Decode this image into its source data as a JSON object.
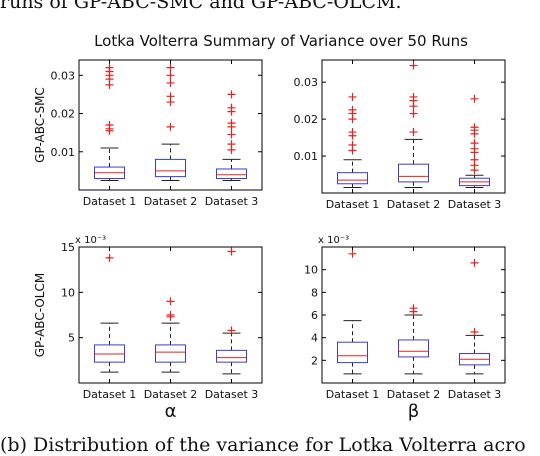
{
  "caption_top": "runs of GP-ABC-SMC and GP-ABC-OLCM.",
  "caption_bottom": "(b) Distribution of the variance for Lotka Volterra acro",
  "figure_title": "Lotka Volterra Summary of Variance over 50 Runs",
  "row_labels": [
    "GP-ABC-SMC",
    "GP-ABC-OLCM"
  ],
  "col_labels": [
    "α",
    "β"
  ],
  "colors": {
    "box": "#3b3bd6",
    "median": "#e52222",
    "outlier": "#e52222",
    "whisker": "#222222"
  },
  "chart_data": [
    {
      "type": "box",
      "panel": "GP-ABC-SMC / α",
      "categories": [
        "Dataset 1",
        "Dataset 2",
        "Dataset 3"
      ],
      "ylabel": "GP-ABC-SMC",
      "xlabel": "",
      "ylim": [
        0,
        0.034
      ],
      "yticks": [
        0.01,
        0.02,
        0.03
      ],
      "ytick_labels": [
        "0.01",
        "0.02",
        "0.03"
      ],
      "exponent_label": "",
      "series": [
        {
          "name": "Dataset 1",
          "min": 0.0025,
          "q1": 0.003,
          "median": 0.0045,
          "q3": 0.006,
          "max": 0.011,
          "outliers": [
            0.0155,
            0.016,
            0.017,
            0.0275,
            0.029,
            0.03,
            0.031,
            0.032
          ]
        },
        {
          "name": "Dataset 2",
          "min": 0.0025,
          "q1": 0.0035,
          "median": 0.005,
          "q3": 0.008,
          "max": 0.012,
          "outliers": [
            0.0165,
            0.023,
            0.0245,
            0.028,
            0.03,
            0.032
          ]
        },
        {
          "name": "Dataset 3",
          "min": 0.0025,
          "q1": 0.003,
          "median": 0.004,
          "q3": 0.0055,
          "max": 0.008,
          "outliers": [
            0.0105,
            0.012,
            0.0145,
            0.0165,
            0.0175,
            0.0205,
            0.0215,
            0.025
          ]
        }
      ]
    },
    {
      "type": "box",
      "panel": "GP-ABC-SMC / β",
      "categories": [
        "Dataset 1",
        "Dataset 2",
        "Dataset 3"
      ],
      "ylabel": "",
      "xlabel": "",
      "ylim": [
        0,
        0.036
      ],
      "yticks": [
        0.01,
        0.02,
        0.03
      ],
      "ytick_labels": [
        "0.01",
        "0.02",
        "0.03"
      ],
      "exponent_label": "",
      "series": [
        {
          "name": "Dataset 1",
          "min": 0.0015,
          "q1": 0.0025,
          "median": 0.0035,
          "q3": 0.0055,
          "max": 0.009,
          "outliers": [
            0.0115,
            0.013,
            0.0155,
            0.0165,
            0.02,
            0.0215,
            0.0225,
            0.026
          ]
        },
        {
          "name": "Dataset 2",
          "min": 0.0015,
          "q1": 0.003,
          "median": 0.0045,
          "q3": 0.0078,
          "max": 0.0145,
          "outliers": [
            0.0165,
            0.0215,
            0.0235,
            0.025,
            0.026,
            0.0345
          ]
        },
        {
          "name": "Dataset 3",
          "min": 0.0015,
          "q1": 0.002,
          "median": 0.003,
          "q3": 0.004,
          "max": 0.0048,
          "outliers": [
            0.0062,
            0.0075,
            0.009,
            0.011,
            0.012,
            0.0135,
            0.016,
            0.017,
            0.0178,
            0.0255
          ]
        }
      ]
    },
    {
      "type": "box",
      "panel": "GP-ABC-OLCM / α",
      "categories": [
        "Dataset 1",
        "Dataset 2",
        "Dataset 3"
      ],
      "ylabel": "GP-ABC-OLCM",
      "xlabel": "α",
      "ylim": [
        0,
        15
      ],
      "yticks": [
        5,
        10,
        15
      ],
      "ytick_labels": [
        "5",
        "10",
        "15"
      ],
      "exponent_label": "x 10⁻³",
      "series": [
        {
          "name": "Dataset 1",
          "min": 1.2,
          "q1": 2.3,
          "median": 3.2,
          "q3": 4.2,
          "max": 6.6,
          "outliers": [
            13.8
          ]
        },
        {
          "name": "Dataset 2",
          "min": 1.2,
          "q1": 2.3,
          "median": 3.4,
          "q3": 4.2,
          "max": 6.6,
          "outliers": [
            7.3,
            7.5,
            9.0
          ]
        },
        {
          "name": "Dataset 3",
          "min": 1.0,
          "q1": 2.3,
          "median": 2.8,
          "q3": 3.6,
          "max": 5.5,
          "outliers": [
            5.8,
            14.5
          ]
        }
      ]
    },
    {
      "type": "box",
      "panel": "GP-ABC-OLCM / β",
      "categories": [
        "Dataset 1",
        "Dataset 2",
        "Dataset 3"
      ],
      "ylabel": "",
      "xlabel": "β",
      "ylim": [
        0,
        12
      ],
      "yticks": [
        2,
        4,
        6,
        8,
        10
      ],
      "ytick_labels": [
        "2",
        "4",
        "6",
        "8",
        "10"
      ],
      "exponent_label": "x 10⁻³",
      "series": [
        {
          "name": "Dataset 1",
          "min": 0.8,
          "q1": 1.8,
          "median": 2.4,
          "q3": 3.6,
          "max": 5.5,
          "outliers": [
            11.4
          ]
        },
        {
          "name": "Dataset 2",
          "min": 0.8,
          "q1": 2.3,
          "median": 2.8,
          "q3": 3.8,
          "max": 6.0,
          "outliers": [
            6.3,
            6.6
          ]
        },
        {
          "name": "Dataset 3",
          "min": 0.8,
          "q1": 1.6,
          "median": 2.1,
          "q3": 2.6,
          "max": 4.2,
          "outliers": [
            4.5,
            10.6
          ]
        }
      ]
    }
  ]
}
